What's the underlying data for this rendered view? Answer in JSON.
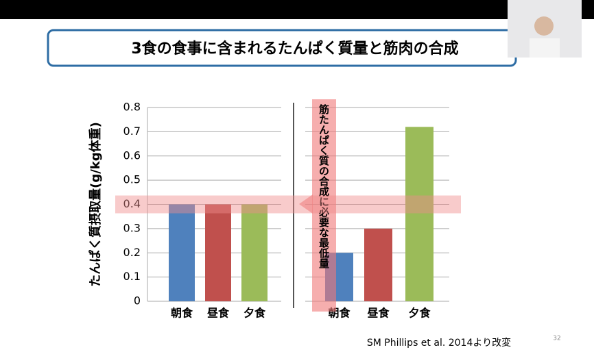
{
  "slide": {
    "title": "3食の食事に含まれるたんぱく質量と筋肉の合成",
    "source": "SM Phillips  et al.  2014より改変",
    "page_number": "32"
  },
  "chart_data": [
    {
      "type": "bar",
      "y_label": "たんぱく質摂取量(g/kg体重)",
      "categories": [
        "朝食",
        "昼食",
        "夕食"
      ],
      "values": [
        0.4,
        0.4,
        0.4
      ],
      "colors": [
        "#4f81bd",
        "#c0504d",
        "#9bbb59"
      ],
      "ylim": [
        0,
        0.8
      ],
      "yticks": [
        0,
        0.1,
        0.2,
        0.3,
        0.4,
        0.5,
        0.6,
        0.7,
        0.8
      ],
      "grid": true,
      "reference_value": 0.4
    },
    {
      "type": "bar",
      "annotation": "筋たんぱく質の合成に必要な最低量",
      "categories": [
        "朝食",
        "昼食",
        "夕食"
      ],
      "values": [
        0.2,
        0.3,
        0.72
      ],
      "colors": [
        "#4f81bd",
        "#c0504d",
        "#9bbb59"
      ],
      "ylim": [
        0,
        0.8
      ],
      "grid": true
    }
  ]
}
